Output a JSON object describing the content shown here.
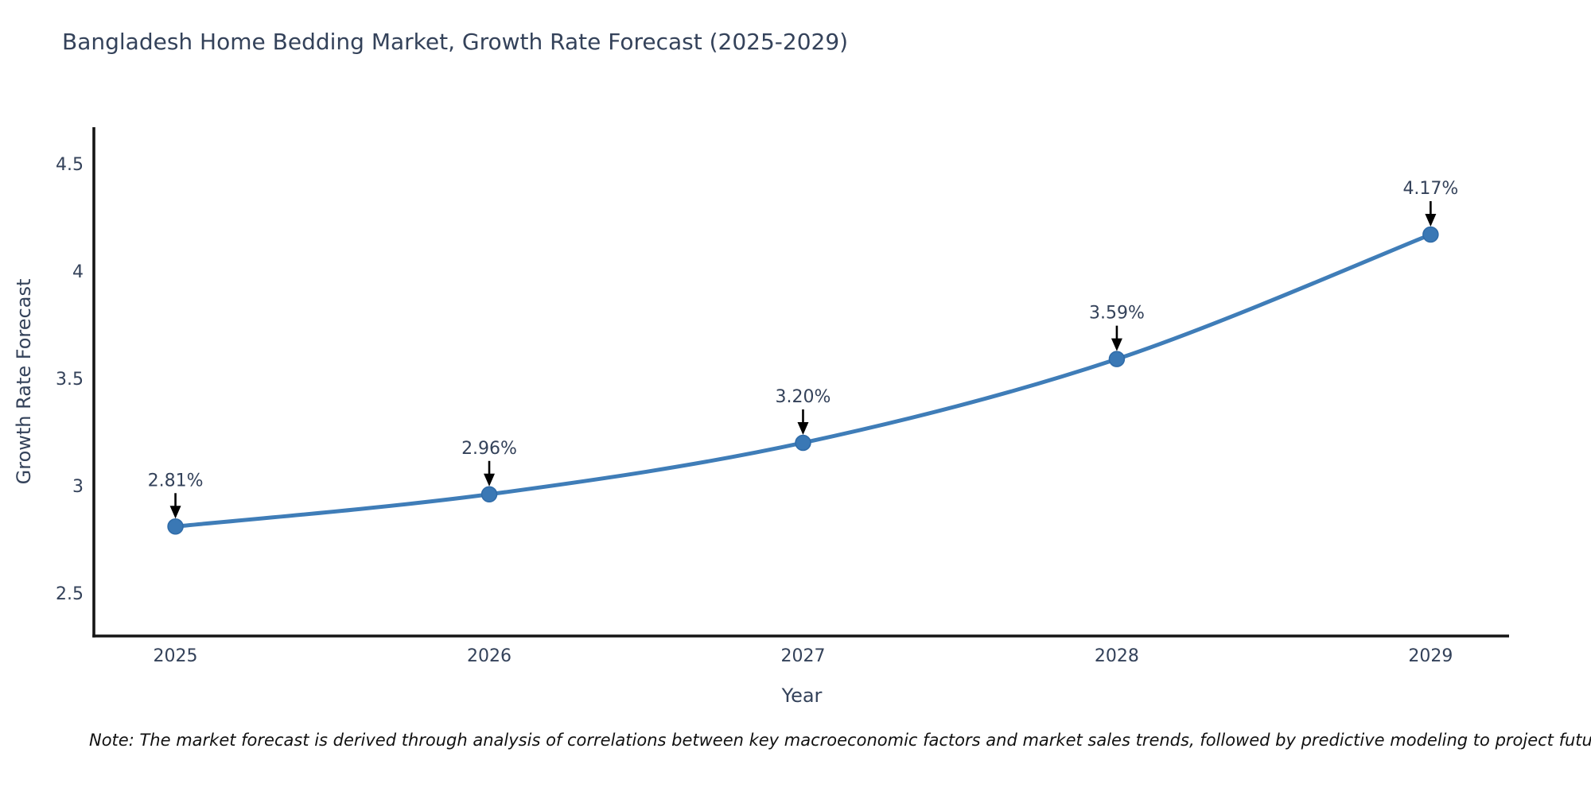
{
  "note": "Note: The market forecast is derived through analysis of correlations between key macroeconomic factors and market sales trends, followed by predictive modeling to project future sales",
  "chart_data": {
    "type": "line",
    "title": "Bangladesh Home Bedding Market, Growth Rate Forecast (2025-2029)",
    "xlabel": "Year",
    "ylabel": "Growth Rate Forecast",
    "x": [
      2025,
      2026,
      2027,
      2028,
      2029
    ],
    "values": [
      2.81,
      2.96,
      3.2,
      3.59,
      4.17
    ],
    "point_labels": [
      "2.81%",
      "2.96%",
      "3.20%",
      "3.59%",
      "4.17%"
    ],
    "series_name": "Growth Rate Forecast",
    "xtick_labels": [
      "2025",
      "2026",
      "2027",
      "2028",
      "2029"
    ],
    "yticks": [
      2.5,
      3,
      3.5,
      4,
      4.5
    ],
    "ytick_labels": [
      "2.5",
      "3",
      "3.5",
      "4",
      "4.5"
    ],
    "xlim": [
      2024.74,
      2029.25
    ],
    "ylim": [
      2.3,
      4.67
    ],
    "grid": false,
    "legend": "none",
    "annotation_style": "value label above point with downward black arrow",
    "colors": {
      "line": "#3f7db8",
      "marker_fill": "#3a78b5",
      "marker_edge": "#2f6ba8",
      "text": "#34425a",
      "axis_spine": "#151515",
      "arrow": "#000000",
      "note_text": "#111111",
      "background": "#ffffff"
    }
  }
}
